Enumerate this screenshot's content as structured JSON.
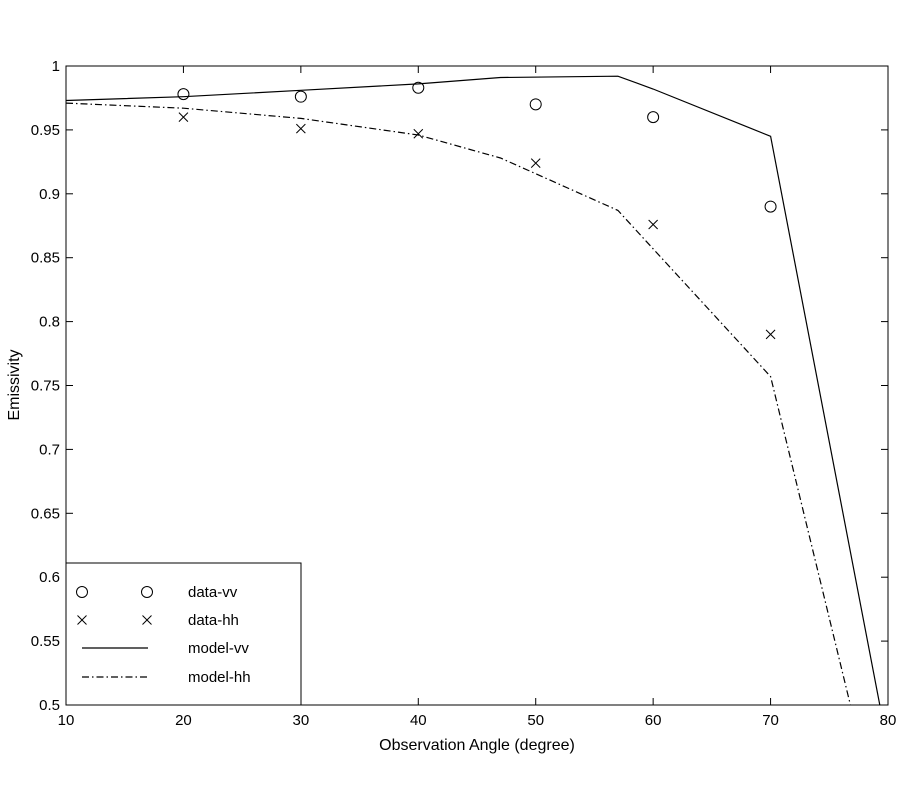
{
  "chart_data": {
    "type": "line",
    "title": "",
    "xlabel": "Observation Angle (degree)",
    "ylabel": "Emissivity",
    "xlim": [
      10,
      80
    ],
    "ylim": [
      0.5,
      1
    ],
    "xticks": [
      "10",
      "20",
      "30",
      "40",
      "50",
      "60",
      "70",
      "80"
    ],
    "yticks": [
      "0.5",
      "0.55",
      "0.6",
      "0.65",
      "0.7",
      "0.75",
      "0.8",
      "0.85",
      "0.9",
      "0.95",
      "1"
    ],
    "grid": false,
    "legend_position": "bottom-left",
    "series": [
      {
        "name": "data-vv",
        "style": "markers",
        "marker": "circle",
        "x": [
          20,
          30,
          40,
          50,
          60,
          70
        ],
        "y": [
          0.978,
          0.976,
          0.983,
          0.97,
          0.96,
          0.89
        ]
      },
      {
        "name": "data-hh",
        "style": "markers",
        "marker": "x",
        "x": [
          20,
          30,
          40,
          50,
          60,
          70
        ],
        "y": [
          0.96,
          0.951,
          0.947,
          0.924,
          0.876,
          0.79
        ]
      },
      {
        "name": "model-vv",
        "style": "solid",
        "x": [
          10,
          20,
          30,
          40,
          47,
          57,
          60,
          70,
          79.3
        ],
        "y": [
          0.973,
          0.976,
          0.981,
          0.986,
          0.991,
          0.992,
          0.982,
          0.945,
          0.5
        ]
      },
      {
        "name": "model-hh",
        "style": "dashdot",
        "x": [
          10,
          20,
          30,
          40,
          47,
          57,
          60,
          70,
          76.8
        ],
        "y": [
          0.971,
          0.967,
          0.959,
          0.946,
          0.928,
          0.887,
          0.857,
          0.757,
          0.5
        ]
      }
    ]
  }
}
